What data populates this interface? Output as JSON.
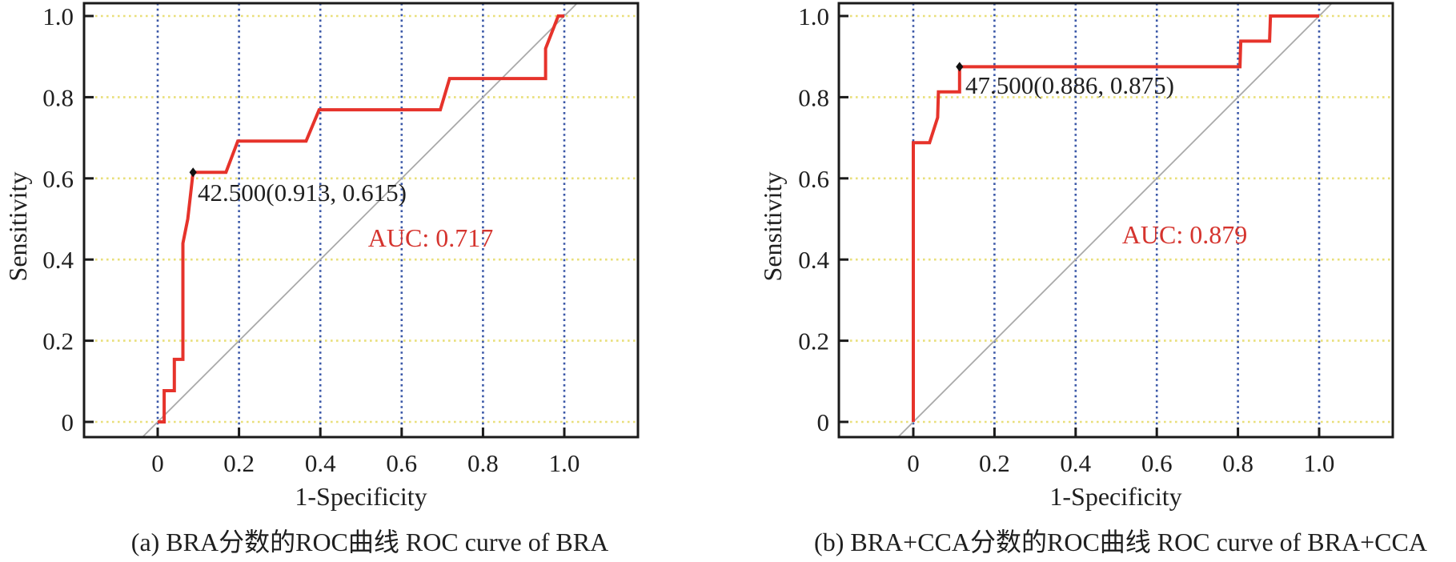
{
  "figure": {
    "background": "#ffffff",
    "frame_color": "#1a1a1a",
    "text_color": "#1f1f1f"
  },
  "chart_data": [
    {
      "type": "line",
      "subtype": "roc-curve",
      "panel": "a",
      "caption": "(a) BRA分数的ROC曲线 ROC curve of BRA",
      "xlabel": "1-Specificity",
      "ylabel": "Sensitivity",
      "xlim": [
        -0.18,
        1.18
      ],
      "ylim": [
        -0.04,
        1.03
      ],
      "x_ticks": {
        "values": [
          0,
          0.2,
          0.4,
          0.6,
          0.8,
          1.0
        ],
        "labels": [
          "0",
          "0.2",
          "0.4",
          "0.6",
          "0.8",
          "1.0"
        ]
      },
      "y_ticks": {
        "values": [
          0,
          0.2,
          0.4,
          0.6,
          0.8,
          1.0
        ],
        "labels": [
          "0",
          "0.2",
          "0.4",
          "0.6",
          "0.8",
          "1.0"
        ]
      },
      "grid": {
        "horizontal_color": "#e9df7a",
        "vertical_color": "#3a57a7",
        "style": "dotted"
      },
      "series": [
        {
          "name": "ROC curve of BRA",
          "color": "#e6332b",
          "points": [
            [
              0,
              0
            ],
            [
              0.016,
              0
            ],
            [
              0.016,
              0.077
            ],
            [
              0.041,
              0.077
            ],
            [
              0.041,
              0.154
            ],
            [
              0.062,
              0.154
            ],
            [
              0.062,
              0.44
            ],
            [
              0.074,
              0.5
            ],
            [
              0.087,
              0.615
            ],
            [
              0.168,
              0.615
            ],
            [
              0.197,
              0.692
            ],
            [
              0.365,
              0.692
            ],
            [
              0.397,
              0.769
            ],
            [
              0.695,
              0.769
            ],
            [
              0.718,
              0.846
            ],
            [
              0.954,
              0.846
            ],
            [
              0.954,
              0.92
            ],
            [
              0.985,
              1.0
            ],
            [
              1.0,
              1.0
            ]
          ]
        },
        {
          "name": "reference diagonal",
          "color": "#a9a9a9",
          "points": [
            [
              0,
              0
            ],
            [
              1,
              1
            ]
          ]
        }
      ],
      "marker": {
        "x": 0.087,
        "y": 0.615,
        "label": "42.500(0.913, 0.615)",
        "color": "#111111"
      },
      "auc": {
        "label": "AUC: 0.717",
        "value": 0.717,
        "color": "#d5342e"
      }
    },
    {
      "type": "line",
      "subtype": "roc-curve",
      "panel": "b",
      "caption": "(b) BRA+CCA分数的ROC曲线 ROC curve of BRA+CCA",
      "xlabel": "1-Specificity",
      "ylabel": "Sensitivity",
      "xlim": [
        -0.18,
        1.18
      ],
      "ylim": [
        -0.04,
        1.03
      ],
      "x_ticks": {
        "values": [
          0,
          0.2,
          0.4,
          0.6,
          0.8,
          1.0
        ],
        "labels": [
          "0",
          "0.2",
          "0.4",
          "0.6",
          "0.8",
          "1.0"
        ]
      },
      "y_ticks": {
        "values": [
          0,
          0.2,
          0.4,
          0.6,
          0.8,
          1.0
        ],
        "labels": [
          "0",
          "0.2",
          "0.4",
          "0.6",
          "0.8",
          "1.0"
        ]
      },
      "grid": {
        "horizontal_color": "#e9df7a",
        "vertical_color": "#3a57a7",
        "style": "dotted"
      },
      "series": [
        {
          "name": "ROC curve of BRA+CCA",
          "color": "#e6332b",
          "points": [
            [
              0,
              0
            ],
            [
              0,
              0.688
            ],
            [
              0.04,
              0.688
            ],
            [
              0.06,
              0.75
            ],
            [
              0.062,
              0.813
            ],
            [
              0.114,
              0.813
            ],
            [
              0.114,
              0.875
            ],
            [
              0.805,
              0.875
            ],
            [
              0.807,
              0.938
            ],
            [
              0.878,
              0.938
            ],
            [
              0.88,
              1.0
            ],
            [
              1.0,
              1.0
            ]
          ]
        },
        {
          "name": "reference diagonal",
          "color": "#a9a9a9",
          "points": [
            [
              0,
              0
            ],
            [
              1,
              1
            ]
          ]
        }
      ],
      "marker": {
        "x": 0.114,
        "y": 0.875,
        "label": "47.500(0.886, 0.875)",
        "color": "#111111"
      },
      "auc": {
        "label": "AUC: 0.879",
        "value": 0.879,
        "color": "#d5342e"
      }
    }
  ]
}
